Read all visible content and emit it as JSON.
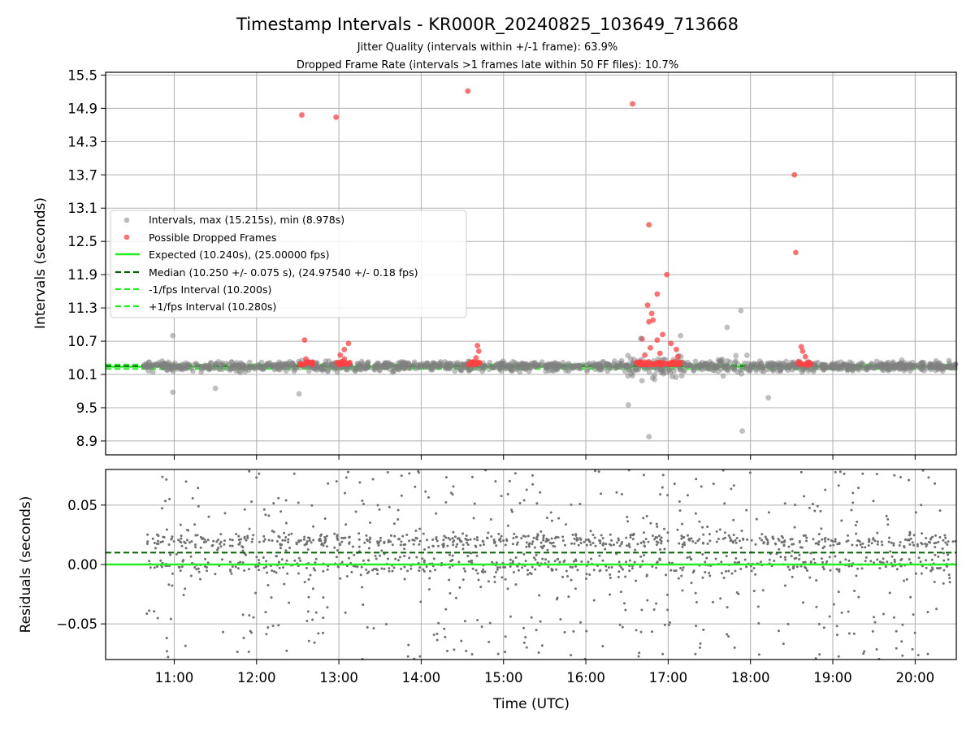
{
  "chart_data": [
    {
      "type": "scatter",
      "title": "Timestamp Intervals - KR000R_20240825_103649_713668",
      "subtitle_1": "Jitter Quality (intervals within +/-1 frame): 63.9%",
      "subtitle_2": "Dropped Frame Rate (intervals >1 frames late within 50 FF files): 10.7%",
      "ylabel": "Intervals (seconds)",
      "y_ticks": [
        "8.9",
        "9.5",
        "10.1",
        "10.7",
        "11.3",
        "11.9",
        "12.5",
        "13.1",
        "13.7",
        "14.3",
        "14.9",
        "15.5"
      ],
      "ylim": [
        8.65,
        15.55
      ],
      "xlim": [
        "10:10",
        "20:30"
      ],
      "grid": true,
      "legend_position": "middle-left",
      "legend": [
        "Intervals, max (15.215s), min (8.978s)",
        "Possible Dropped Frames",
        "Expected (10.240s), (25.00000 fps)",
        "Median (10.250 +/- 0.075 s), (24.97540 +/- 0.18 fps)",
        "-1/fps Interval (10.200s)",
        "+1/fps Interval (10.280s)"
      ],
      "reference_lines": {
        "expected": 10.24,
        "median": 10.25,
        "minus_1_fps": 10.2,
        "plus_1_fps": 10.28
      },
      "series": [
        {
          "name": "Possible Dropped Frames",
          "color": "#ff4040",
          "points": [
            [
              "12:33",
              14.78
            ],
            [
              "12:58",
              14.74
            ],
            [
              "14:34",
              15.21
            ],
            [
              "16:34",
              14.98
            ],
            [
              "18:32",
              13.7
            ],
            [
              "18:33",
              12.3
            ],
            [
              "16:46",
              12.8
            ],
            [
              "16:59",
              11.9
            ],
            [
              "16:52",
              11.55
            ],
            [
              "16:45",
              11.35
            ],
            [
              "16:48",
              11.2
            ],
            [
              "16:49",
              11.08
            ],
            [
              "16:46",
              11.05
            ],
            [
              "12:35",
              10.72
            ],
            [
              "13:07",
              10.66
            ],
            [
              "16:41",
              10.74
            ],
            [
              "16:56",
              10.82
            ],
            [
              "17:02",
              10.66
            ],
            [
              "14:41",
              10.62
            ],
            [
              "18:37",
              10.6
            ],
            [
              "13:04",
              10.55
            ],
            [
              "14:42",
              10.52
            ],
            [
              "16:47",
              10.58
            ],
            [
              "16:52",
              10.72
            ],
            [
              "17:06",
              10.55
            ],
            [
              "13:01",
              10.45
            ],
            [
              "14:40",
              10.4
            ],
            [
              "16:54",
              10.48
            ],
            [
              "18:38",
              10.52
            ],
            [
              "12:36",
              10.38
            ],
            [
              "13:04",
              10.38
            ],
            [
              "16:43",
              10.45
            ],
            [
              "17:07",
              10.42
            ],
            [
              "18:40",
              10.42
            ]
          ]
        },
        {
          "name": "Intervals, max (15.215s), min (8.978s)",
          "color": "#808080",
          "points": [
            [
              "17:54",
              9.08
            ],
            [
              "16:46",
              8.978
            ],
            [
              "17:53",
              11.25
            ],
            [
              "17:43",
              10.95
            ],
            [
              "17:09",
              10.8
            ],
            [
              "16:40",
              10.75
            ],
            [
              "16:31",
              9.55
            ],
            [
              "18:13",
              9.68
            ],
            [
              "10:59",
              10.8
            ],
            [
              "12:31",
              9.75
            ],
            [
              "10:59",
              9.78
            ],
            [
              "11:30",
              9.85
            ]
          ]
        }
      ]
    },
    {
      "type": "scatter",
      "xlabel": "Time (UTC)",
      "ylabel": "Residuals (seconds)",
      "y_ticks": [
        "−0.05",
        "0.00",
        "0.05"
      ],
      "x_ticks": [
        "11:00",
        "12:00",
        "13:00",
        "14:00",
        "15:00",
        "16:00",
        "17:00",
        "18:00",
        "19:00",
        "20:00"
      ],
      "ylim": [
        -0.08,
        0.08
      ],
      "xlim": [
        "10:10",
        "20:30"
      ],
      "grid": true,
      "reference_lines": {
        "zero": 0.0,
        "median_offset": 0.01
      },
      "series": [
        {
          "name": "",
          "color": "#808080",
          "points": []
        }
      ]
    }
  ]
}
